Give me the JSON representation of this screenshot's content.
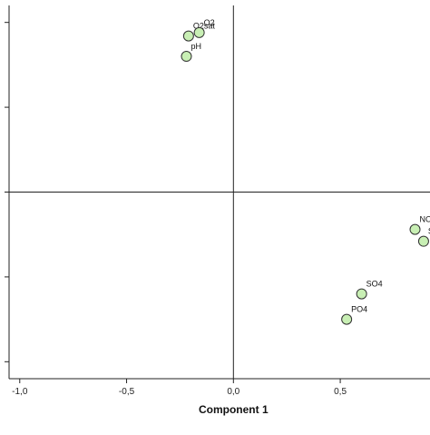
{
  "chart_data": {
    "type": "scatter",
    "title": "",
    "xlabel": "Component 1",
    "ylabel": "",
    "xlim": [
      -1.05,
      0.92
    ],
    "ylim": [
      -1.1,
      1.1
    ],
    "x_ticks": [
      -1.0,
      -0.5,
      0.0,
      0.5
    ],
    "x_tick_labels": [
      "-1,0",
      "-0,5",
      "0,0",
      "0,5"
    ],
    "y_ticks": [
      -1.0,
      -0.5,
      0.0,
      0.5,
      1.0
    ],
    "grid": false,
    "reference_lines": {
      "x": 0,
      "y": 0
    },
    "colors": {
      "marker_fill": "#c8efb4",
      "marker_stroke": "#333333",
      "axis": "#222222"
    },
    "points": [
      {
        "label": "O2sat",
        "x": -0.21,
        "y": 0.92
      },
      {
        "label": "O2",
        "x": -0.16,
        "y": 0.94
      },
      {
        "label": "pH",
        "x": -0.22,
        "y": 0.8
      },
      {
        "label": "NO",
        "x": 0.85,
        "y": -0.22
      },
      {
        "label": "Sa",
        "x": 0.89,
        "y": -0.29
      },
      {
        "label": "SO4",
        "x": 0.6,
        "y": -0.6
      },
      {
        "label": "PO4",
        "x": 0.53,
        "y": -0.75
      }
    ]
  }
}
